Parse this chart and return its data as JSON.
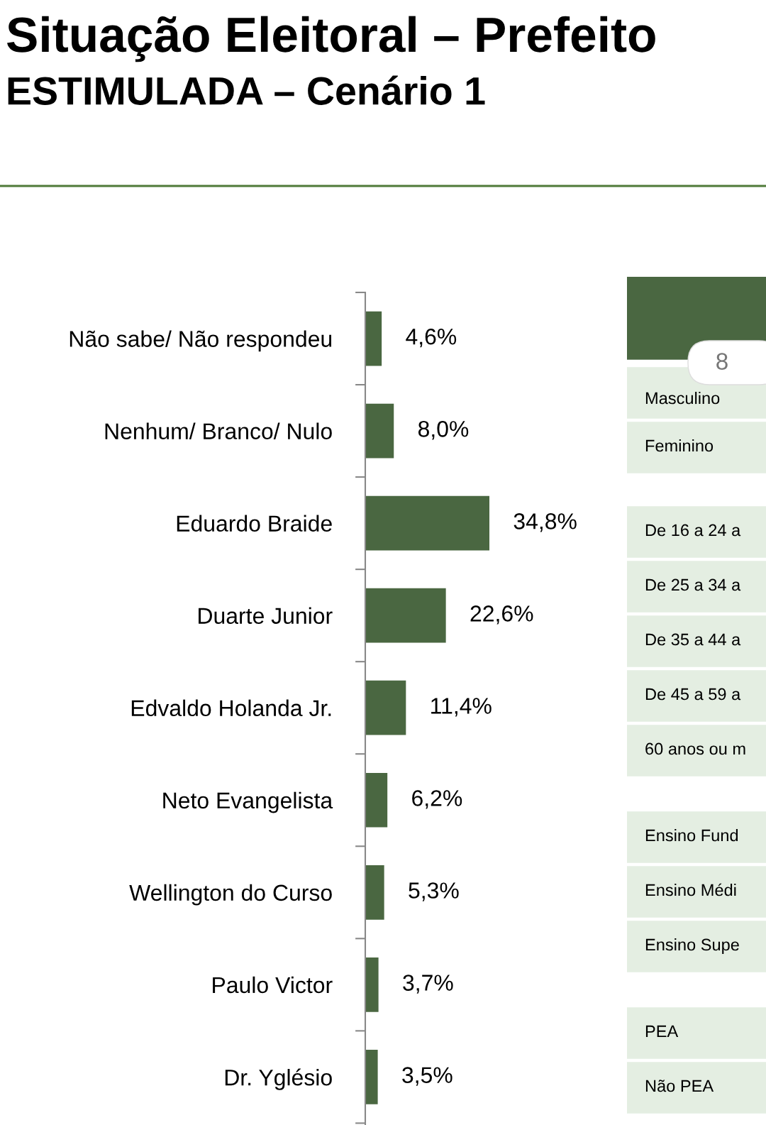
{
  "chart_data": [
    {
      "type": "bar",
      "orientation": "horizontal",
      "title": "Situação Eleitoral – Prefeito",
      "subtitle": "ESTIMULADA – Cenário 1",
      "categories": [
        "Não sabe/ Não respondeu",
        "Nenhum/ Branco/ Nulo",
        "Eduardo Braide",
        "Duarte Junior",
        "Edvaldo Holanda Jr.",
        "Neto Evangelista",
        "Wellington do Curso",
        "Paulo Victor",
        "Dr. Yglésio"
      ],
      "values": [
        4.6,
        8.0,
        34.8,
        22.6,
        11.4,
        6.2,
        5.3,
        3.7,
        3.5
      ],
      "value_labels": [
        "4,6%",
        "8,0%",
        "34,8%",
        "22,6%",
        "11,4%",
        "6,2%",
        "5,3%",
        "3,7%",
        "3,5%"
      ],
      "color": "#4a6741",
      "grid": false,
      "legend": false
    },
    {
      "type": "other",
      "annotations": [
        "8",
        "Masculino",
        "Feminino",
        "De 16 a 24 a",
        "De 25 a 34 a",
        "De 35 a 44 a",
        "De 45 a 59 a",
        "60 anos ou m",
        "Ensino Fund",
        "Ensino Médi",
        "Ensino Supe",
        "PEA",
        "Não PEA"
      ]
    }
  ]
}
